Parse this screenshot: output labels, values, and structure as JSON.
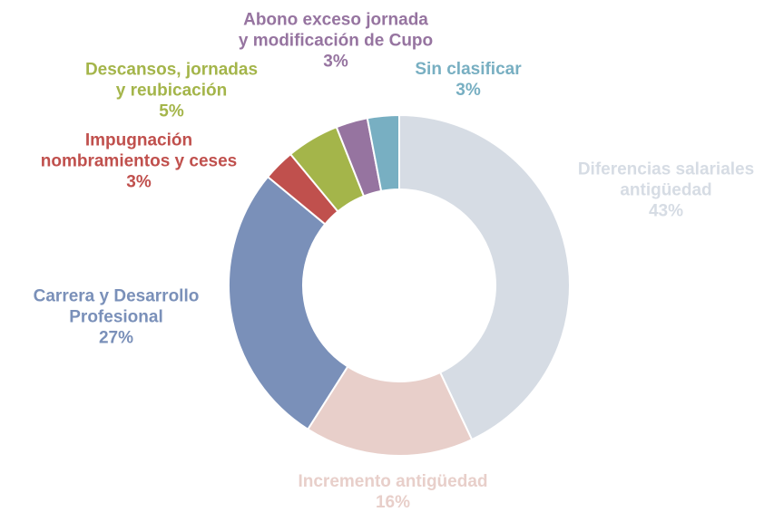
{
  "chart_data": {
    "type": "donut",
    "categories": [
      "Diferencias salariales\nantigüedad",
      "Incremento antigüedad",
      "Carrera y Desarrollo\nProfesional",
      "Impugnación\nnombramientos y ceses",
      "Descansos, jornadas\ny reubicación",
      "Abono exceso jornada\ny modificación de Cupo",
      "Sin clasificar"
    ],
    "values": [
      43,
      16,
      27,
      3,
      5,
      3,
      3
    ],
    "value_labels": [
      "43%",
      "16%",
      "27%",
      "3%",
      "5%",
      "3%",
      "3%"
    ],
    "colors": [
      "#d6dce4",
      "#e8cfca",
      "#7a90b9",
      "#c0504d",
      "#a4b54a",
      "#9674a0",
      "#78afc2"
    ]
  }
}
